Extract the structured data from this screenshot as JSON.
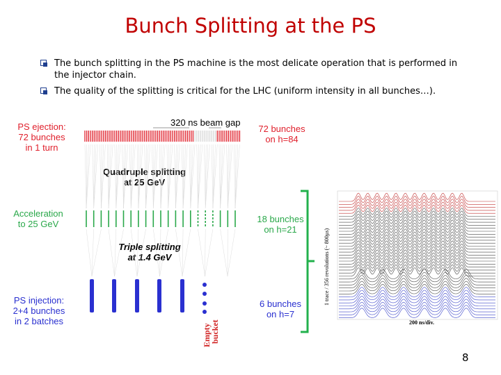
{
  "slide": {
    "title": "Bunch Splitting at the PS",
    "bullets": [
      "The bunch splitting in the PS machine is the most delicate operation that is performed in the injector chain.",
      "The quality of the splitting is critical for the LHC (uniform intensity in all bunches…)."
    ],
    "page_number": "8"
  },
  "diagram": {
    "gap_label": "320 ns beam gap",
    "left_labels": {
      "ejection": [
        "PS ejection:",
        "72 bunches",
        "in 1 turn"
      ],
      "acceleration": [
        "Acceleration",
        "to 25 GeV"
      ],
      "injection": [
        "PS injection:",
        "2+4 bunches",
        "in 2 batches"
      ]
    },
    "center_labels": {
      "quadruple": [
        "Quadruple splitting",
        "at 25 GeV"
      ],
      "triple": [
        "Triple splitting",
        "at 1.4 GeV"
      ],
      "empty_bucket": [
        "Empty",
        "bucket"
      ]
    },
    "right_labels": {
      "h84": [
        "72 bunches",
        "on h=84"
      ],
      "h21": [
        "18 bunches",
        "on h=21"
      ],
      "h7": [
        "6 bunches",
        "on h=7"
      ]
    },
    "colors": {
      "red": "#e0202c",
      "green": "#2aa84a",
      "blue": "#2a30d0",
      "title": "#c00000",
      "bracket": "#22b14c"
    }
  },
  "mountain_plot": {
    "y_axis_label": "1 trace / 356 revolutions (~ 800µs)",
    "x_axis_label": "200 ns/div."
  }
}
